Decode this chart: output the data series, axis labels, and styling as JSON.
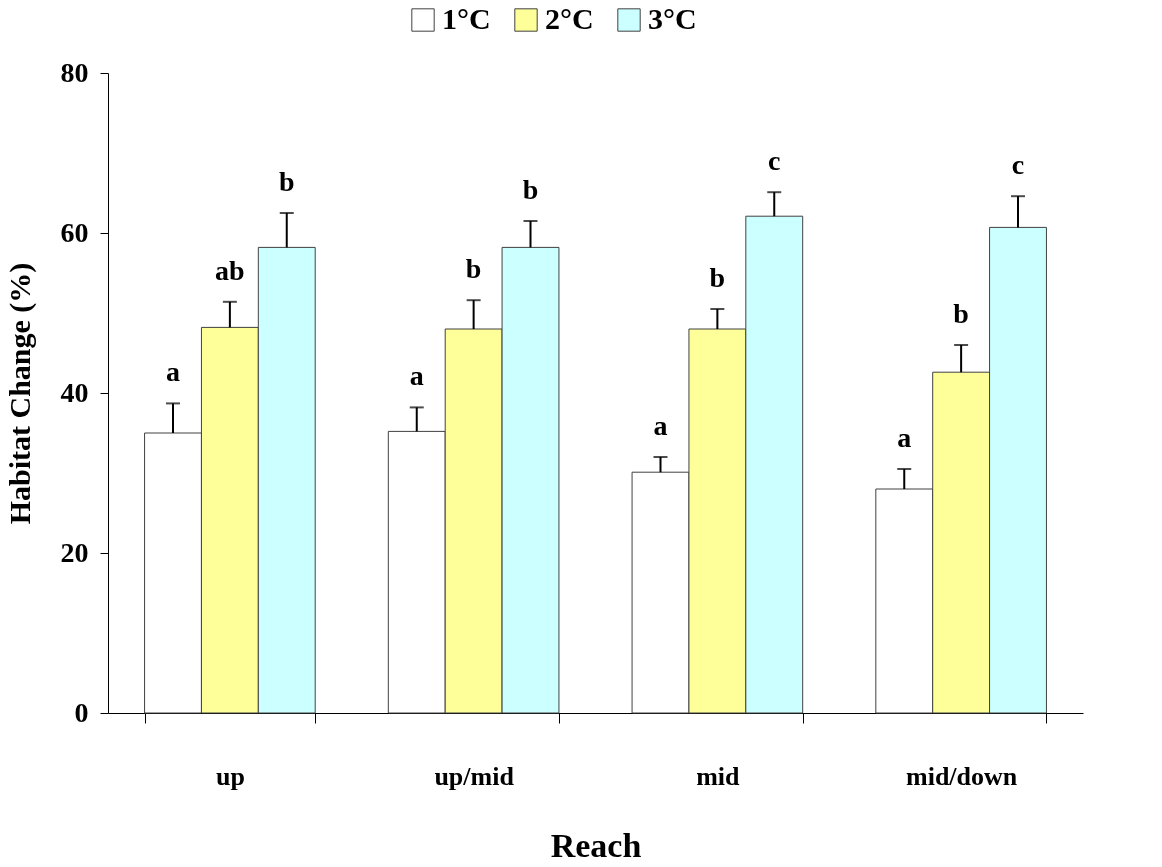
{
  "chart_data": {
    "type": "bar",
    "xlabel": "Reach",
    "ylabel": "Habitat Change (%)",
    "categories": [
      "up",
      "up/mid",
      "mid",
      "mid/down"
    ],
    "series": [
      {
        "name": "1°C",
        "color": "#ffffff",
        "values": [
          35.0,
          35.2,
          30.1,
          28.0
        ],
        "errors": [
          [
            35.0,
            38.7
          ],
          [
            35.2,
            38.2
          ],
          [
            30.1,
            32.0
          ],
          [
            28.0,
            30.5
          ]
        ],
        "value_labels": [
          "a",
          "a",
          "a",
          "a"
        ]
      },
      {
        "name": "2°C",
        "color": "#ffff99",
        "values": [
          48.2,
          48.0,
          48.0,
          42.6
        ],
        "errors": [
          [
            48.2,
            51.4
          ],
          [
            48.0,
            51.6
          ],
          [
            48.0,
            50.5
          ],
          [
            42.6,
            46.0
          ]
        ],
        "value_labels": [
          "ab",
          "b",
          "b",
          "b"
        ]
      },
      {
        "name": "3°C",
        "color": "#ccffff",
        "values": [
          58.2,
          58.2,
          62.1,
          60.7
        ],
        "errors": [
          [
            58.2,
            62.5
          ],
          [
            58.2,
            61.5
          ],
          [
            62.1,
            65.1
          ],
          [
            60.7,
            64.6
          ]
        ],
        "value_labels": [
          "b",
          "b",
          "c",
          "c"
        ]
      }
    ],
    "ylim": [
      0,
      80
    ],
    "yticks": [
      0,
      20,
      40,
      60,
      80
    ],
    "grid": false,
    "legend": "top"
  }
}
